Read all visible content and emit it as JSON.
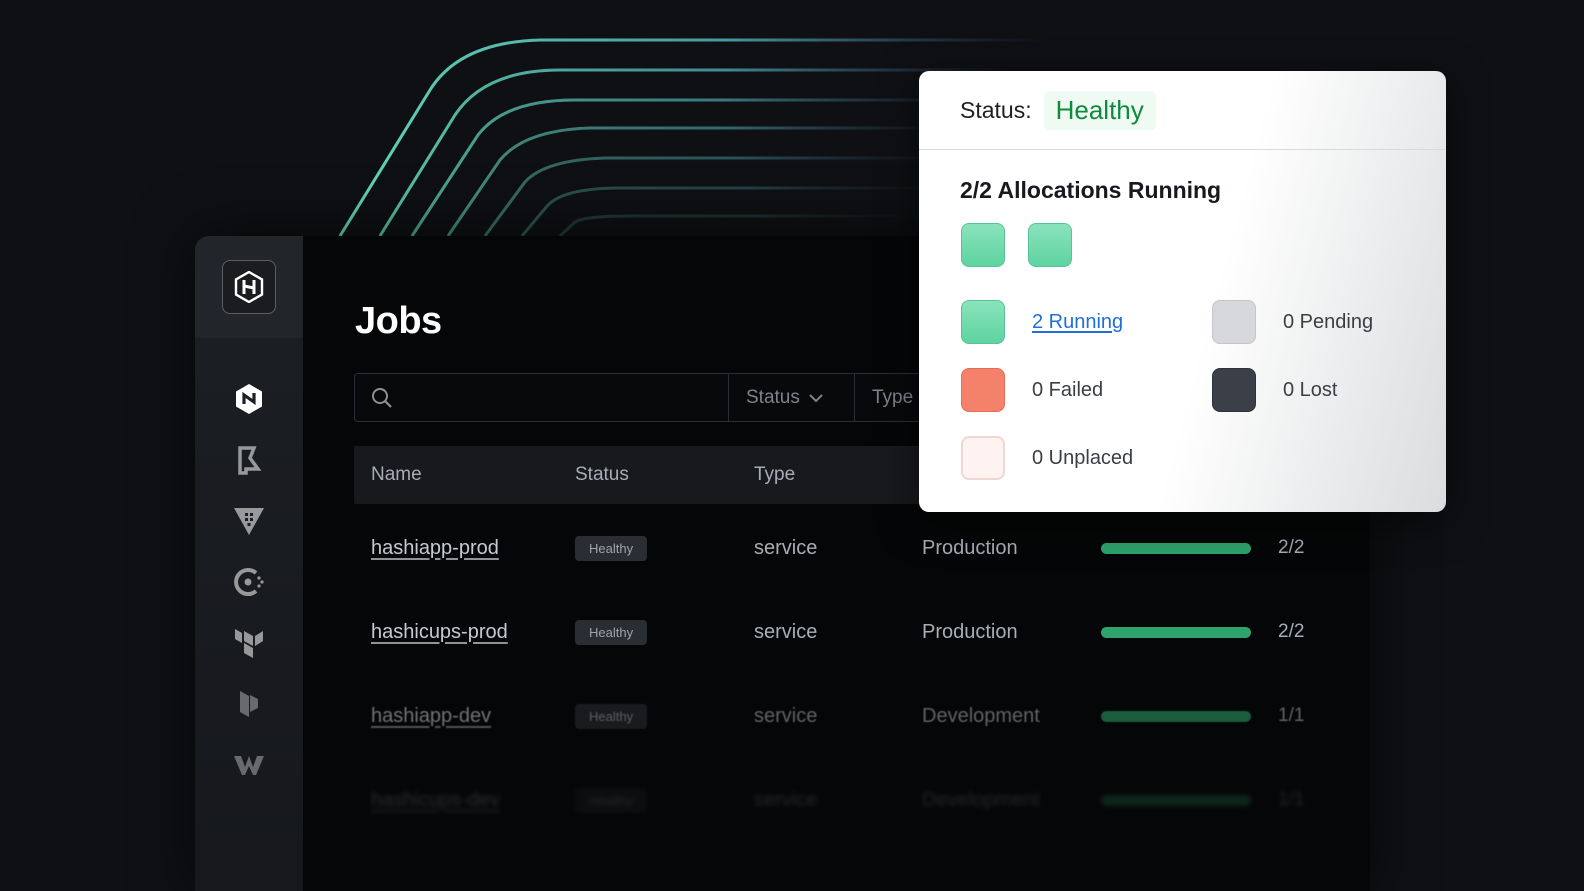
{
  "sidebar": {
    "logo_icon": "hashicorp-logo-icon",
    "items": [
      {
        "icon": "nomad-icon"
      },
      {
        "icon": "boundary-icon"
      },
      {
        "icon": "vault-icon"
      },
      {
        "icon": "consul-icon"
      },
      {
        "icon": "terraform-icon"
      },
      {
        "icon": "packer-icon"
      },
      {
        "icon": "waypoint-icon"
      }
    ]
  },
  "page": {
    "title": "Jobs"
  },
  "filters": {
    "search_placeholder": "",
    "status_label": "Status",
    "type_label": "Type"
  },
  "table": {
    "headers": {
      "name": "Name",
      "status": "Status",
      "type": "Type"
    },
    "rows": [
      {
        "name": "hashiapp-prod",
        "status": "Healthy",
        "type": "service",
        "namespace": "Production",
        "progress": 1.0,
        "count": "2/2"
      },
      {
        "name": "hashicups-prod",
        "status": "Healthy",
        "type": "service",
        "namespace": "Production",
        "progress": 1.0,
        "count": "2/2"
      },
      {
        "name": "hashiapp-dev",
        "status": "Healthy",
        "type": "service",
        "namespace": "Development",
        "progress": 1.0,
        "count": "1/1"
      },
      {
        "name": "hashicups-dev",
        "status": "Healthy",
        "type": "service",
        "namespace": "Development",
        "progress": 1.0,
        "count": "1/1"
      }
    ]
  },
  "popover": {
    "status_label": "Status:",
    "status_value": "Healthy",
    "allocations_title": "2/2 Allocations Running",
    "legend": {
      "running": "2 Running",
      "pending": "0 Pending",
      "failed": "0 Failed",
      "lost": "0 Lost",
      "unplaced": "0 Unplaced"
    }
  },
  "colors": {
    "running": "#6fdaaa",
    "failed": "#f4826b",
    "lost": "#3b4048",
    "pending": "#d6d8db",
    "healthy_text": "#0f8a3f",
    "progress_bar": "#2ea36d",
    "background": "#0e1013"
  }
}
